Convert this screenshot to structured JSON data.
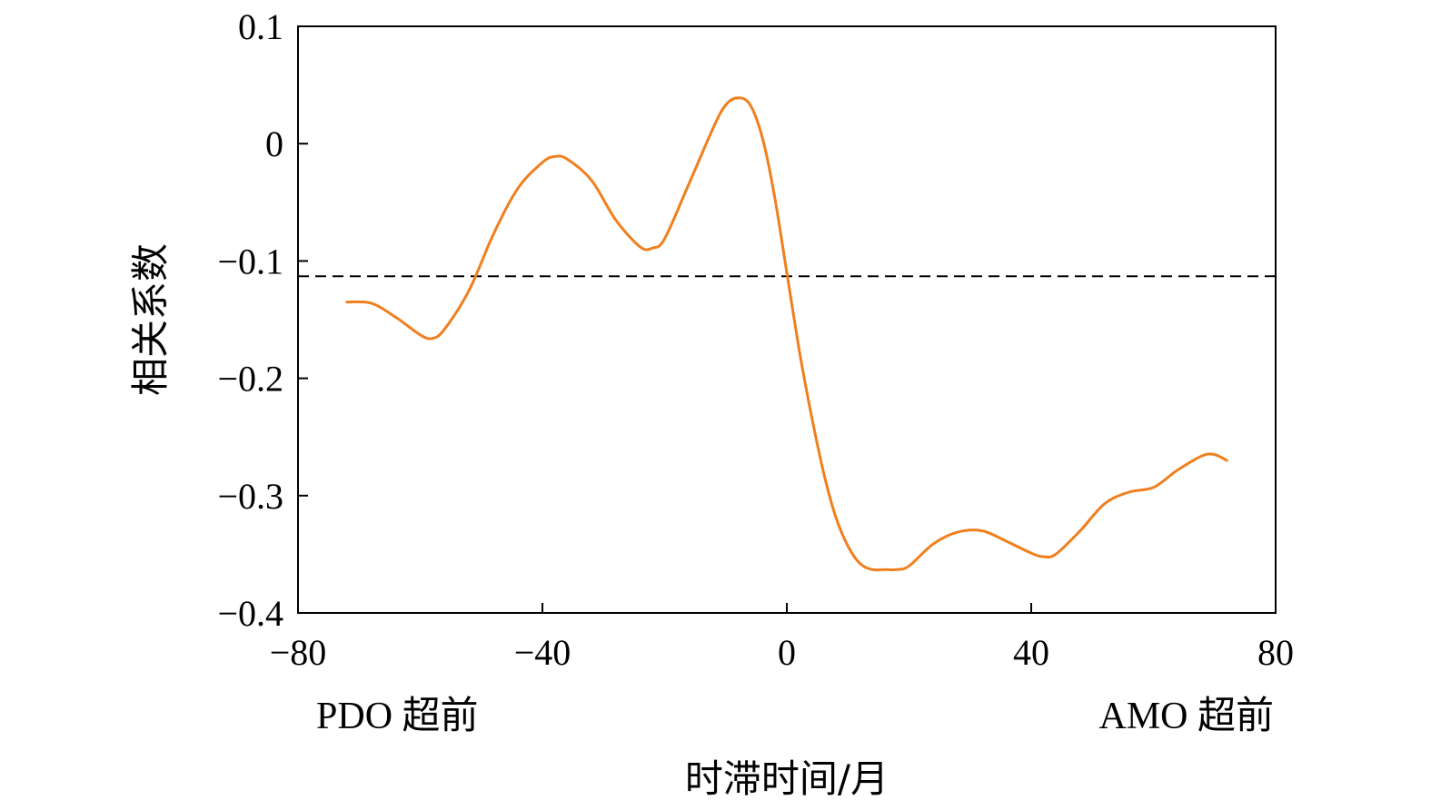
{
  "chart_data": {
    "type": "line",
    "xlabel": "时滞时间/月",
    "ylabel": "相关系数",
    "xlim": [
      -80,
      80
    ],
    "ylim": [
      -0.4,
      0.1
    ],
    "xticks": [
      -80,
      -40,
      0,
      40,
      80
    ],
    "xtick_labels": [
      "−80",
      "−40",
      "0",
      "40",
      "80"
    ],
    "yticks": [
      0.1,
      0,
      -0.1,
      -0.2,
      -0.3,
      -0.4
    ],
    "ytick_labels": [
      "0.1",
      "0",
      "−0.1",
      "−0.2",
      "−0.3",
      "−0.4"
    ],
    "grid": false,
    "legend": "none",
    "annotations": {
      "left": "PDO 超前",
      "right": "AMO 超前"
    },
    "threshold": {
      "y": -0.113,
      "style": "dashed"
    },
    "series": [
      {
        "color": "#F07F1E",
        "x": [
          -72,
          -68,
          -64,
          -60,
          -58,
          -56,
          -52,
          -48,
          -44,
          -40,
          -38,
          -36,
          -32,
          -28,
          -24,
          -22,
          -20,
          -16,
          -12,
          -10,
          -8,
          -6,
          -4,
          -2,
          0,
          2,
          4,
          6,
          8,
          10,
          12,
          14,
          16,
          18,
          20,
          24,
          28,
          32,
          36,
          40,
          42,
          44,
          48,
          52,
          56,
          60,
          64,
          68,
          70,
          72
        ],
        "y": [
          -0.135,
          -0.136,
          -0.148,
          -0.163,
          -0.166,
          -0.158,
          -0.125,
          -0.077,
          -0.038,
          -0.016,
          -0.011,
          -0.013,
          -0.031,
          -0.065,
          -0.088,
          -0.089,
          -0.081,
          -0.034,
          0.014,
          0.033,
          0.039,
          0.033,
          0.005,
          -0.045,
          -0.11,
          -0.175,
          -0.231,
          -0.28,
          -0.318,
          -0.343,
          -0.358,
          -0.363,
          -0.363,
          -0.363,
          -0.36,
          -0.341,
          -0.331,
          -0.33,
          -0.339,
          -0.349,
          -0.352,
          -0.35,
          -0.33,
          -0.307,
          -0.297,
          -0.293,
          -0.278,
          -0.266,
          -0.265,
          -0.27
        ]
      }
    ]
  }
}
